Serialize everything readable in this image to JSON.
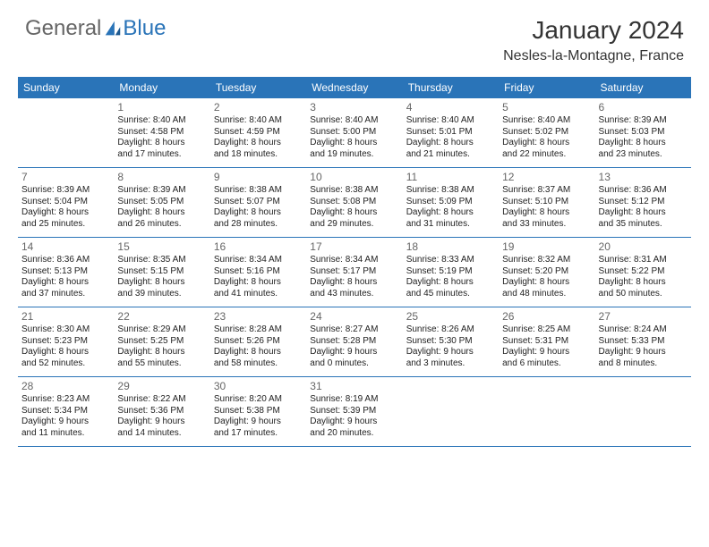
{
  "logo": {
    "part1": "General",
    "part2": "Blue"
  },
  "title": "January 2024",
  "location": "Nesles-la-Montagne, France",
  "day_headers": [
    "Sunday",
    "Monday",
    "Tuesday",
    "Wednesday",
    "Thursday",
    "Friday",
    "Saturday"
  ],
  "colors": {
    "header_bg": "#2a74b8",
    "header_text": "#ffffff",
    "logo_gray": "#666666",
    "logo_blue": "#2a74b8",
    "body_text": "#222222",
    "daynum_text": "#666666",
    "row_border": "#2a74b8",
    "page_bg": "#ffffff"
  },
  "fonts": {
    "title_size_pt": 21,
    "location_size_pt": 12,
    "header_size_pt": 9,
    "daynum_size_pt": 9,
    "cell_size_pt": 7.5
  },
  "grid": [
    [
      null,
      {
        "n": "1",
        "sr": "8:40 AM",
        "ss": "4:58 PM",
        "dh": 8,
        "dm": 17
      },
      {
        "n": "2",
        "sr": "8:40 AM",
        "ss": "4:59 PM",
        "dh": 8,
        "dm": 18
      },
      {
        "n": "3",
        "sr": "8:40 AM",
        "ss": "5:00 PM",
        "dh": 8,
        "dm": 19
      },
      {
        "n": "4",
        "sr": "8:40 AM",
        "ss": "5:01 PM",
        "dh": 8,
        "dm": 21
      },
      {
        "n": "5",
        "sr": "8:40 AM",
        "ss": "5:02 PM",
        "dh": 8,
        "dm": 22
      },
      {
        "n": "6",
        "sr": "8:39 AM",
        "ss": "5:03 PM",
        "dh": 8,
        "dm": 23
      }
    ],
    [
      {
        "n": "7",
        "sr": "8:39 AM",
        "ss": "5:04 PM",
        "dh": 8,
        "dm": 25
      },
      {
        "n": "8",
        "sr": "8:39 AM",
        "ss": "5:05 PM",
        "dh": 8,
        "dm": 26
      },
      {
        "n": "9",
        "sr": "8:38 AM",
        "ss": "5:07 PM",
        "dh": 8,
        "dm": 28
      },
      {
        "n": "10",
        "sr": "8:38 AM",
        "ss": "5:08 PM",
        "dh": 8,
        "dm": 29
      },
      {
        "n": "11",
        "sr": "8:38 AM",
        "ss": "5:09 PM",
        "dh": 8,
        "dm": 31
      },
      {
        "n": "12",
        "sr": "8:37 AM",
        "ss": "5:10 PM",
        "dh": 8,
        "dm": 33
      },
      {
        "n": "13",
        "sr": "8:36 AM",
        "ss": "5:12 PM",
        "dh": 8,
        "dm": 35
      }
    ],
    [
      {
        "n": "14",
        "sr": "8:36 AM",
        "ss": "5:13 PM",
        "dh": 8,
        "dm": 37
      },
      {
        "n": "15",
        "sr": "8:35 AM",
        "ss": "5:15 PM",
        "dh": 8,
        "dm": 39
      },
      {
        "n": "16",
        "sr": "8:34 AM",
        "ss": "5:16 PM",
        "dh": 8,
        "dm": 41
      },
      {
        "n": "17",
        "sr": "8:34 AM",
        "ss": "5:17 PM",
        "dh": 8,
        "dm": 43
      },
      {
        "n": "18",
        "sr": "8:33 AM",
        "ss": "5:19 PM",
        "dh": 8,
        "dm": 45
      },
      {
        "n": "19",
        "sr": "8:32 AM",
        "ss": "5:20 PM",
        "dh": 8,
        "dm": 48
      },
      {
        "n": "20",
        "sr": "8:31 AM",
        "ss": "5:22 PM",
        "dh": 8,
        "dm": 50
      }
    ],
    [
      {
        "n": "21",
        "sr": "8:30 AM",
        "ss": "5:23 PM",
        "dh": 8,
        "dm": 52
      },
      {
        "n": "22",
        "sr": "8:29 AM",
        "ss": "5:25 PM",
        "dh": 8,
        "dm": 55
      },
      {
        "n": "23",
        "sr": "8:28 AM",
        "ss": "5:26 PM",
        "dh": 8,
        "dm": 58
      },
      {
        "n": "24",
        "sr": "8:27 AM",
        "ss": "5:28 PM",
        "dh": 9,
        "dm": 0
      },
      {
        "n": "25",
        "sr": "8:26 AM",
        "ss": "5:30 PM",
        "dh": 9,
        "dm": 3
      },
      {
        "n": "26",
        "sr": "8:25 AM",
        "ss": "5:31 PM",
        "dh": 9,
        "dm": 6
      },
      {
        "n": "27",
        "sr": "8:24 AM",
        "ss": "5:33 PM",
        "dh": 9,
        "dm": 8
      }
    ],
    [
      {
        "n": "28",
        "sr": "8:23 AM",
        "ss": "5:34 PM",
        "dh": 9,
        "dm": 11
      },
      {
        "n": "29",
        "sr": "8:22 AM",
        "ss": "5:36 PM",
        "dh": 9,
        "dm": 14
      },
      {
        "n": "30",
        "sr": "8:20 AM",
        "ss": "5:38 PM",
        "dh": 9,
        "dm": 17
      },
      {
        "n": "31",
        "sr": "8:19 AM",
        "ss": "5:39 PM",
        "dh": 9,
        "dm": 20
      },
      null,
      null,
      null
    ]
  ]
}
